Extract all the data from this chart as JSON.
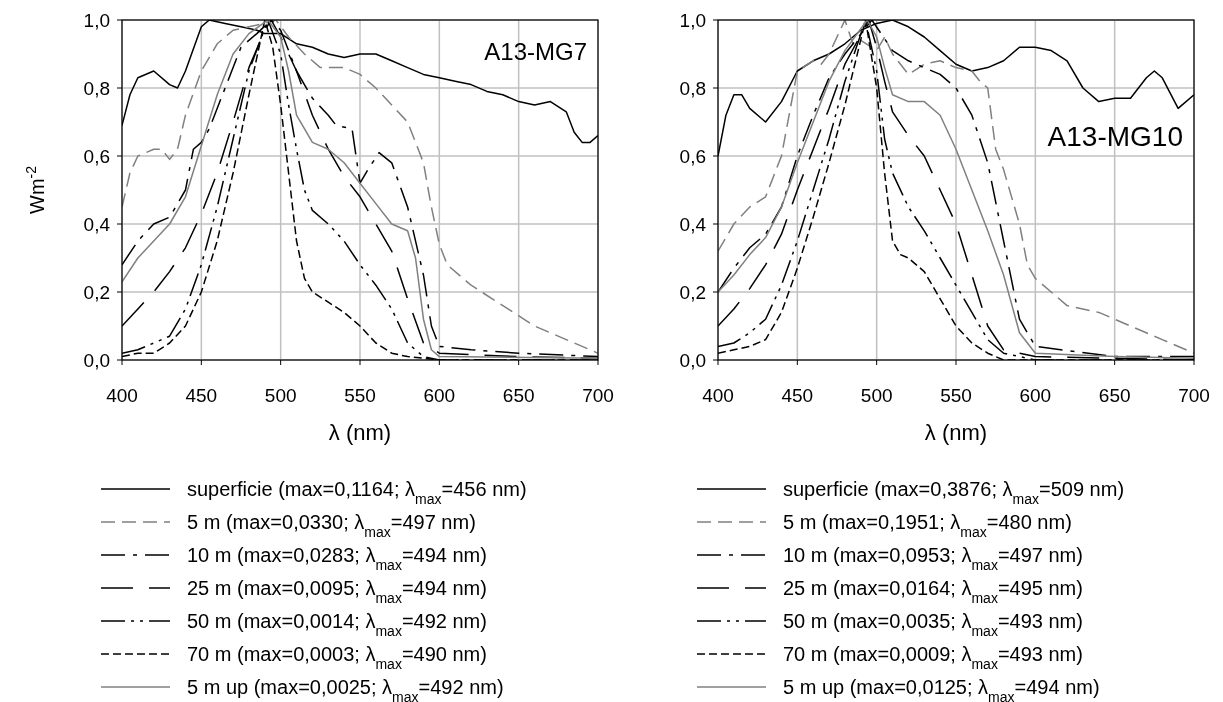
{
  "chart_data": [
    {
      "type": "line",
      "xlabel": "λ (nm)",
      "ylabel": "Wm$^{-2}$",
      "annotations": [
        "A13-MG7"
      ],
      "xlim": [
        400,
        700
      ],
      "ylim": [
        0,
        1
      ],
      "xticks": [
        400,
        450,
        500,
        550,
        600,
        650,
        700
      ],
      "yticks": [
        {
          "value": 0,
          "label": "0,0"
        },
        {
          "value": 0.2,
          "label": "0,2"
        },
        {
          "value": 0.4,
          "label": "0,4"
        },
        {
          "value": 0.6,
          "label": "0,6"
        },
        {
          "value": 0.8,
          "label": "0,8"
        },
        {
          "value": 1,
          "label": "1,0"
        }
      ],
      "grid": true,
      "legend": "bottom",
      "series": [
        {
          "name": "superficie (max=0,1164; λ$_{max}$=456 nm)",
          "color": "#000000",
          "line_style": "solid",
          "x": [
            400,
            405,
            410,
            420,
            430,
            435,
            440,
            450,
            455,
            465,
            475,
            485,
            490,
            500,
            510,
            520,
            530,
            540,
            550,
            560,
            570,
            580,
            590,
            600,
            610,
            620,
            630,
            640,
            650,
            660,
            670,
            680,
            685,
            690,
            695,
            700
          ],
          "values": [
            0.69,
            0.78,
            0.83,
            0.85,
            0.81,
            0.8,
            0.85,
            0.98,
            1.0,
            0.99,
            0.98,
            0.97,
            0.96,
            0.96,
            0.93,
            0.92,
            0.9,
            0.89,
            0.9,
            0.9,
            0.88,
            0.86,
            0.84,
            0.83,
            0.82,
            0.81,
            0.79,
            0.78,
            0.76,
            0.75,
            0.76,
            0.73,
            0.67,
            0.64,
            0.64,
            0.66
          ]
        },
        {
          "name": "5 m (max=0,0330; λ$_{max}$=497 nm)",
          "color": "#808080",
          "line_style": "dashed",
          "x": [
            400,
            405,
            410,
            420,
            425,
            430,
            435,
            440,
            450,
            460,
            470,
            480,
            490,
            497,
            505,
            515,
            525,
            540,
            550,
            560,
            570,
            580,
            590,
            595,
            600,
            605,
            620,
            640,
            660,
            680,
            700
          ],
          "values": [
            0.45,
            0.55,
            0.6,
            0.62,
            0.62,
            0.59,
            0.62,
            0.72,
            0.85,
            0.93,
            0.97,
            0.98,
            0.99,
            1.0,
            0.95,
            0.9,
            0.86,
            0.86,
            0.84,
            0.8,
            0.75,
            0.7,
            0.58,
            0.45,
            0.34,
            0.28,
            0.22,
            0.16,
            0.1,
            0.06,
            0.02
          ]
        },
        {
          "name": "10 m (max=0,0283; λ$_{max}$=494 nm)",
          "color": "#000000",
          "line_style": "dashed",
          "x": [
            400,
            410,
            420,
            430,
            440,
            445,
            450,
            455,
            465,
            475,
            485,
            494,
            500,
            510,
            520,
            530,
            535,
            545,
            550,
            555,
            562,
            570,
            580,
            590,
            595,
            600,
            620,
            650,
            700
          ],
          "values": [
            0.28,
            0.35,
            0.4,
            0.42,
            0.5,
            0.62,
            0.64,
            0.68,
            0.8,
            0.92,
            0.96,
            1.0,
            0.97,
            0.85,
            0.77,
            0.72,
            0.69,
            0.68,
            0.52,
            0.56,
            0.61,
            0.58,
            0.45,
            0.25,
            0.1,
            0.04,
            0.03,
            0.02,
            0.01
          ]
        },
        {
          "name": "25 m (max=0,0095; λ$_{max}$=494 nm)",
          "color": "#000000",
          "line_style": "dashed",
          "x": [
            400,
            410,
            420,
            430,
            440,
            450,
            460,
            470,
            480,
            490,
            494,
            500,
            510,
            520,
            530,
            540,
            550,
            560,
            570,
            580,
            590,
            600,
            650,
            700
          ],
          "values": [
            0.1,
            0.15,
            0.2,
            0.26,
            0.33,
            0.43,
            0.55,
            0.7,
            0.86,
            0.97,
            1.0,
            0.95,
            0.85,
            0.72,
            0.62,
            0.54,
            0.48,
            0.4,
            0.32,
            0.18,
            0.05,
            0.02,
            0.01,
            0.005
          ]
        },
        {
          "name": "50 m (max=0,0014; λ$_{max}$=492 nm)",
          "color": "#000000",
          "line_style": "dashed",
          "x": [
            400,
            410,
            420,
            430,
            440,
            450,
            460,
            470,
            480,
            492,
            500,
            505,
            510,
            515,
            520,
            530,
            540,
            550,
            560,
            570,
            580,
            590,
            600,
            700
          ],
          "values": [
            0.02,
            0.03,
            0.05,
            0.07,
            0.15,
            0.28,
            0.45,
            0.65,
            0.85,
            1.0,
            0.9,
            0.75,
            0.62,
            0.5,
            0.44,
            0.4,
            0.35,
            0.28,
            0.22,
            0.15,
            0.05,
            0.01,
            0.0,
            0.0
          ]
        },
        {
          "name": "70 m (max=0,0003; λ$_{max}$=490 nm)",
          "color": "#000000",
          "line_style": "dashed",
          "x": [
            400,
            410,
            420,
            430,
            440,
            450,
            460,
            470,
            480,
            490,
            495,
            500,
            505,
            510,
            515,
            520,
            530,
            540,
            550,
            560,
            570,
            580,
            600,
            700
          ],
          "values": [
            0.01,
            0.02,
            0.02,
            0.05,
            0.1,
            0.2,
            0.35,
            0.55,
            0.78,
            1.0,
            0.92,
            0.75,
            0.55,
            0.35,
            0.24,
            0.2,
            0.17,
            0.14,
            0.1,
            0.05,
            0.02,
            0.01,
            0.0,
            0.0
          ]
        },
        {
          "name": "5 m up (max=0,0025; λ$_{max}$=492 nm)",
          "color": "#808080",
          "line_style": "solid",
          "x": [
            400,
            410,
            420,
            430,
            440,
            450,
            460,
            470,
            480,
            492,
            500,
            505,
            510,
            520,
            530,
            540,
            550,
            560,
            570,
            580,
            585,
            590,
            595,
            600,
            700
          ],
          "values": [
            0.23,
            0.3,
            0.35,
            0.4,
            0.48,
            0.63,
            0.78,
            0.9,
            0.96,
            1.0,
            0.95,
            0.85,
            0.72,
            0.64,
            0.62,
            0.58,
            0.52,
            0.46,
            0.4,
            0.38,
            0.3,
            0.12,
            0.03,
            0.01,
            0.005
          ]
        }
      ]
    },
    {
      "type": "line",
      "xlabel": "λ (nm)",
      "annotations": [
        "A13-MG10"
      ],
      "xlim": [
        400,
        700
      ],
      "ylim": [
        0,
        1
      ],
      "xticks": [
        400,
        450,
        500,
        550,
        600,
        650,
        700
      ],
      "yticks": [
        {
          "value": 0,
          "label": "0,0"
        },
        {
          "value": 0.2,
          "label": "0,2"
        },
        {
          "value": 0.4,
          "label": "0,4"
        },
        {
          "value": 0.6,
          "label": "0,6"
        },
        {
          "value": 0.8,
          "label": "0,8"
        },
        {
          "value": 1,
          "label": "1,0"
        }
      ],
      "grid": true,
      "legend": "bottom",
      "series": [
        {
          "name": "superficie (max=0,3876; λ$_{max}$=509 nm)",
          "color": "#000000",
          "line_style": "solid",
          "x": [
            400,
            405,
            410,
            415,
            420,
            430,
            440,
            450,
            460,
            470,
            480,
            490,
            500,
            510,
            520,
            530,
            540,
            550,
            560,
            570,
            580,
            590,
            600,
            610,
            620,
            630,
            640,
            650,
            660,
            670,
            675,
            680,
            690,
            700
          ],
          "values": [
            0.6,
            0.72,
            0.78,
            0.78,
            0.74,
            0.7,
            0.76,
            0.85,
            0.88,
            0.9,
            0.93,
            0.97,
            0.99,
            1.0,
            0.98,
            0.95,
            0.91,
            0.87,
            0.85,
            0.86,
            0.88,
            0.92,
            0.92,
            0.91,
            0.88,
            0.8,
            0.76,
            0.77,
            0.77,
            0.83,
            0.85,
            0.83,
            0.74,
            0.78
          ]
        },
        {
          "name": "5 m (max=0,1951; λ$_{max}$=480 nm)",
          "color": "#808080",
          "line_style": "dashed",
          "x": [
            400,
            410,
            420,
            430,
            440,
            450,
            460,
            465,
            470,
            480,
            485,
            490,
            500,
            505,
            510,
            520,
            530,
            540,
            550,
            560,
            565,
            570,
            575,
            580,
            590,
            595,
            600,
            620,
            640,
            660,
            680,
            700
          ],
          "values": [
            0.32,
            0.4,
            0.45,
            0.48,
            0.6,
            0.85,
            0.88,
            0.87,
            0.9,
            1.0,
            0.93,
            0.94,
            0.91,
            0.95,
            0.9,
            0.84,
            0.87,
            0.88,
            0.86,
            0.85,
            0.82,
            0.8,
            0.62,
            0.56,
            0.4,
            0.28,
            0.24,
            0.16,
            0.14,
            0.1,
            0.06,
            0.02
          ]
        },
        {
          "name": "10 m (max=0,0953; λ$_{max}$=497 nm)",
          "color": "#000000",
          "line_style": "dashed",
          "x": [
            400,
            410,
            420,
            430,
            440,
            450,
            460,
            470,
            480,
            497,
            510,
            520,
            530,
            540,
            550,
            560,
            570,
            580,
            590,
            600,
            650,
            700
          ],
          "values": [
            0.2,
            0.27,
            0.33,
            0.37,
            0.45,
            0.6,
            0.72,
            0.83,
            0.9,
            1.0,
            0.91,
            0.88,
            0.86,
            0.84,
            0.8,
            0.72,
            0.58,
            0.35,
            0.12,
            0.04,
            0.01,
            0.01
          ]
        },
        {
          "name": "25 m (max=0,0164; λ$_{max}$=495 nm)",
          "color": "#000000",
          "line_style": "dashed",
          "x": [
            400,
            410,
            420,
            430,
            440,
            450,
            460,
            470,
            480,
            495,
            500,
            505,
            510,
            520,
            530,
            540,
            550,
            560,
            570,
            580,
            600,
            700
          ],
          "values": [
            0.1,
            0.15,
            0.21,
            0.28,
            0.37,
            0.5,
            0.62,
            0.74,
            0.87,
            1.0,
            0.92,
            0.82,
            0.73,
            0.66,
            0.6,
            0.5,
            0.4,
            0.25,
            0.1,
            0.03,
            0.01,
            0.0
          ]
        },
        {
          "name": "50 m (max=0,0035; λ$_{max}$=493 nm)",
          "color": "#000000",
          "line_style": "dashed",
          "x": [
            400,
            410,
            420,
            430,
            440,
            450,
            460,
            470,
            480,
            493,
            500,
            505,
            510,
            520,
            530,
            540,
            550,
            560,
            570,
            580,
            600,
            700
          ],
          "values": [
            0.04,
            0.05,
            0.08,
            0.12,
            0.22,
            0.35,
            0.5,
            0.65,
            0.82,
            1.0,
            0.85,
            0.65,
            0.55,
            0.45,
            0.38,
            0.3,
            0.22,
            0.14,
            0.06,
            0.02,
            0.0,
            0.0
          ]
        },
        {
          "name": "70 m (max=0,0009; λ$_{max}$=493 nm)",
          "color": "#000000",
          "line_style": "dashed",
          "x": [
            400,
            410,
            420,
            430,
            440,
            450,
            460,
            470,
            480,
            493,
            500,
            505,
            510,
            515,
            520,
            530,
            540,
            550,
            560,
            570,
            580,
            700
          ],
          "values": [
            0.02,
            0.03,
            0.04,
            0.06,
            0.14,
            0.27,
            0.42,
            0.58,
            0.75,
            1.0,
            0.8,
            0.55,
            0.35,
            0.31,
            0.3,
            0.26,
            0.18,
            0.1,
            0.05,
            0.02,
            0.0,
            0.0
          ]
        },
        {
          "name": "5 m up (max=0,0125; λ$_{max}$=494 nm)",
          "color": "#808080",
          "line_style": "solid",
          "x": [
            400,
            410,
            420,
            430,
            440,
            450,
            460,
            470,
            480,
            494,
            500,
            505,
            510,
            520,
            530,
            540,
            550,
            560,
            570,
            580,
            590,
            600,
            650,
            700
          ],
          "values": [
            0.2,
            0.25,
            0.31,
            0.36,
            0.45,
            0.58,
            0.7,
            0.82,
            0.91,
            1.0,
            0.95,
            0.86,
            0.78,
            0.76,
            0.76,
            0.72,
            0.62,
            0.5,
            0.38,
            0.25,
            0.08,
            0.02,
            0.01,
            0.005
          ]
        }
      ]
    }
  ]
}
